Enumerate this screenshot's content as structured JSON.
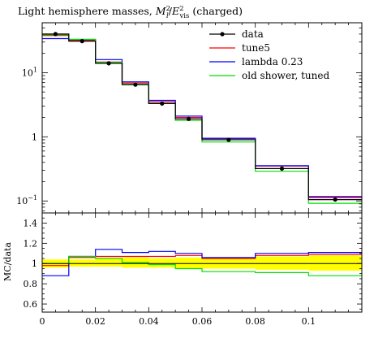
{
  "chart_data": {
    "type": "line",
    "title": "Light hemisphere masses, M_l^2/E_vis^2 (charged)",
    "title_parts": {
      "prefix": "Light hemisphere masses, ",
      "m": "M",
      "m_sub": "l",
      "m_sup": "2",
      "slash": "/",
      "e": "E",
      "e_sub": "vis",
      "e_sup": "2",
      "suffix": " (charged)"
    },
    "bin_edges": [
      0.0,
      0.01,
      0.02,
      0.03,
      0.04,
      0.05,
      0.06,
      0.08,
      0.1,
      0.12
    ],
    "xlim": [
      0.0,
      0.12
    ],
    "top_panel": {
      "yscale": "log",
      "ylim": [
        0.065,
        60
      ],
      "ytick_labels": [
        {
          "value": 0.1,
          "base": "10",
          "exp": "−1"
        },
        {
          "value": 1,
          "base": "1",
          "exp": ""
        },
        {
          "value": 10,
          "base": "10",
          "exp": "1"
        }
      ]
    },
    "ratio_panel": {
      "ylabel": "MC/data",
      "ylim": [
        0.52,
        1.5
      ],
      "yticks": [
        0.6,
        0.8,
        1.0,
        1.2,
        1.4
      ],
      "ytick_labels": [
        "0.6",
        "0.8",
        "1",
        "1.2",
        "1.4"
      ],
      "band": {
        "color": "#ffff00",
        "upper": [
          1.04,
          1.04,
          1.05,
          1.06,
          1.05,
          1.06,
          1.06,
          1.07,
          1.08
        ],
        "lower": [
          0.96,
          0.97,
          0.97,
          0.96,
          0.96,
          0.95,
          0.95,
          0.94,
          0.93
        ]
      }
    },
    "xtick_labels": [
      {
        "value": 0,
        "label": "0"
      },
      {
        "value": 0.02,
        "label": "0.02"
      },
      {
        "value": 0.04,
        "label": "0.04"
      },
      {
        "value": 0.06,
        "label": "0.06"
      },
      {
        "value": 0.08,
        "label": "0.08"
      },
      {
        "value": 0.1,
        "label": "0.1"
      }
    ],
    "data": {
      "name": "data",
      "color": "#000000",
      "x": [
        0.005,
        0.015,
        0.025,
        0.035,
        0.045,
        0.055,
        0.07,
        0.09,
        0.11
      ],
      "values": [
        40,
        31,
        14,
        6.5,
        3.3,
        1.9,
        0.9,
        0.32,
        0.105
      ]
    },
    "series": [
      {
        "name": "tune5",
        "color": "#ff0000",
        "values": [
          38,
          32,
          14.6,
          6.9,
          3.5,
          2.0,
          0.94,
          0.35,
          0.113
        ],
        "ratio": [
          0.98,
          1.06,
          1.07,
          1.07,
          1.07,
          1.08,
          1.05,
          1.08,
          1.09
        ]
      },
      {
        "name": "lambda 0.23",
        "color": "#0000ff",
        "values": [
          34,
          33,
          16,
          7.2,
          3.7,
          2.1,
          0.95,
          0.355,
          0.117
        ],
        "ratio": [
          0.88,
          1.07,
          1.14,
          1.11,
          1.12,
          1.1,
          1.06,
          1.1,
          1.11
        ]
      },
      {
        "name": "old shower, tuned",
        "color": "#00dd00",
        "values": [
          39,
          33,
          14.5,
          6.6,
          3.3,
          1.8,
          0.83,
          0.29,
          0.092
        ],
        "ratio": [
          1.0,
          1.07,
          1.05,
          1.01,
          0.99,
          0.95,
          0.92,
          0.91,
          0.88
        ]
      }
    ],
    "legend_placement": "top-right",
    "grid": false
  }
}
